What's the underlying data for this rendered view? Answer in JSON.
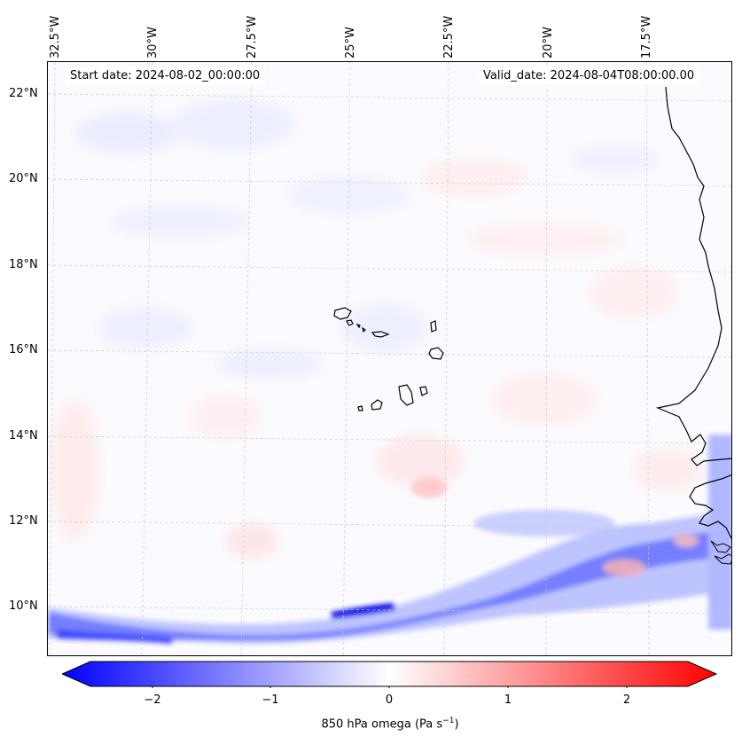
{
  "header": {
    "start_date": "Start date: 2024-08-02_00:00:00",
    "valid_date": "Valid_date: 2024-08-04T08:00:00.00"
  },
  "longitude_labels": [
    "32.5°W",
    "30°W",
    "27.5°W",
    "25°W",
    "22.5°W",
    "20°W",
    "17.5°W"
  ],
  "latitude_labels": [
    "22°N",
    "20°N",
    "18°N",
    "16°N",
    "14°N",
    "12°N",
    "10°N"
  ],
  "colorbar": {
    "ticks": [
      "−2",
      "−1",
      "0",
      "1",
      "2"
    ],
    "label": "850 hPa omega (Pa s",
    "label_sup": "−1",
    "label_end": ")",
    "colors": {
      "negative": "#0000ff",
      "zero": "#ffffff",
      "positive": "#ff0000"
    },
    "range": [
      -2.75,
      2.75
    ]
  },
  "map": {
    "field": "850 hPa omega",
    "gridlines": true,
    "coastline_color": "#000000",
    "features": [
      "Cape Verde islands",
      "West African coast"
    ]
  }
}
